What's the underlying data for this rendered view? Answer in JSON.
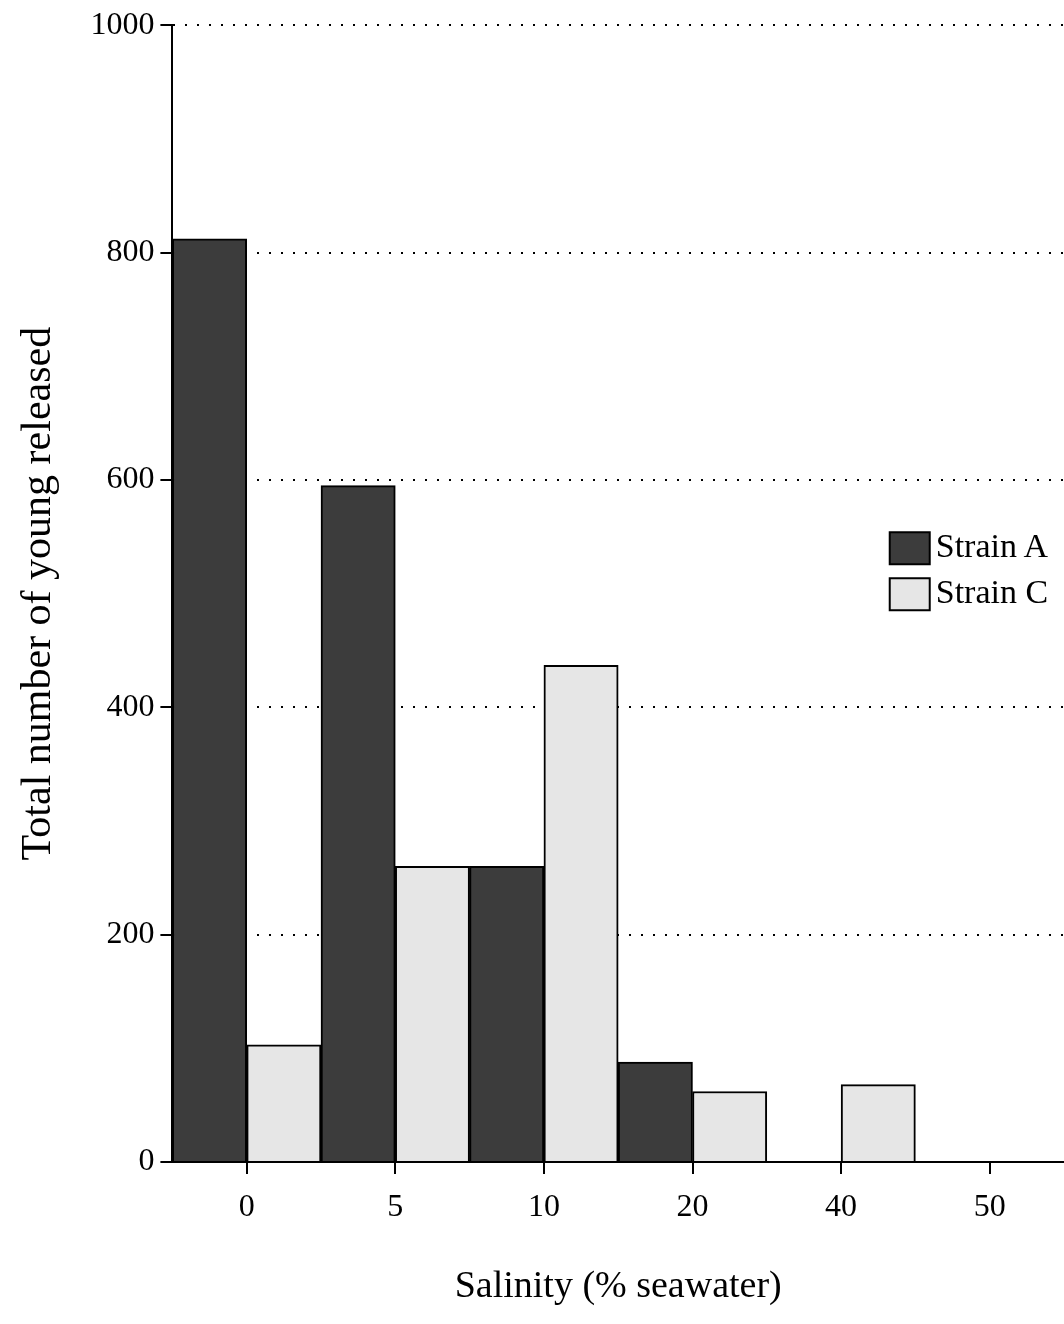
{
  "chart_data": {
    "type": "bar",
    "xlabel": "Salinity (% seawater)",
    "ylabel": "Total number of young released",
    "categories": [
      "0",
      "5",
      "10",
      "20",
      "40",
      "50"
    ],
    "series": [
      {
        "name": "Strain A",
        "color": "#3c3c3c",
        "values": [
          812,
          595,
          260,
          88,
          0,
          0
        ]
      },
      {
        "name": "Strain C",
        "color": "#e6e6e6",
        "values": [
          103,
          260,
          437,
          62,
          68,
          0
        ]
      }
    ],
    "ylim": [
      0,
      1000
    ],
    "yticks": [
      0,
      200,
      400,
      600,
      800,
      1000
    ],
    "grid": "y",
    "legend": "right"
  }
}
